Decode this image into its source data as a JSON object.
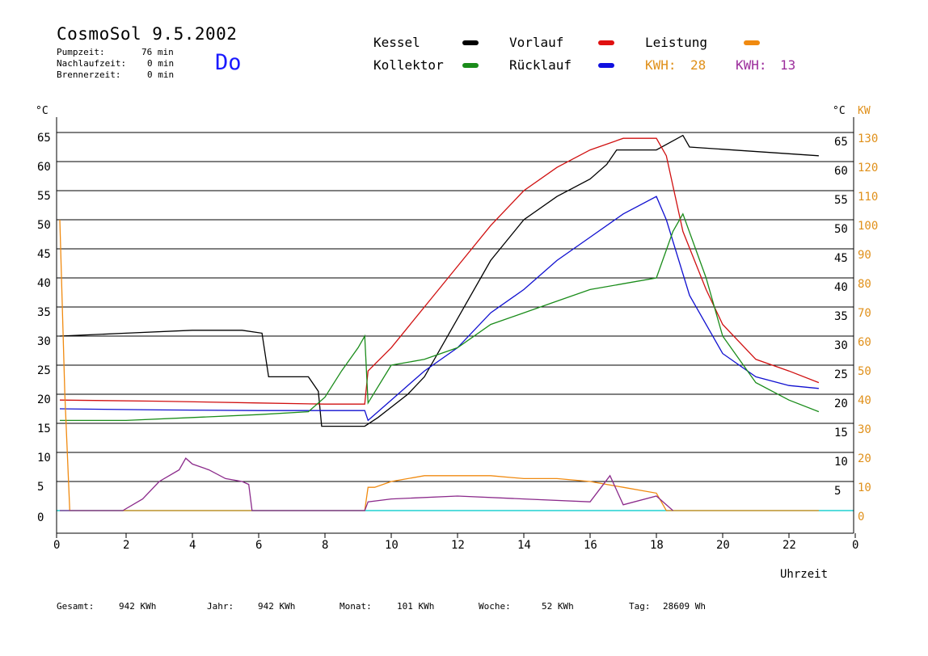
{
  "header": {
    "title": "CosmoSol 9.5.2002",
    "day": "Do",
    "stats": [
      {
        "label": "Pumpzeit:",
        "value": "76 min"
      },
      {
        "label": "Nachlaufzeit:",
        "value": "0 min"
      },
      {
        "label": "Brennerzeit:",
        "value": "0 min"
      }
    ]
  },
  "legend": {
    "kessel": {
      "label": "Kessel",
      "color": "#000000"
    },
    "kollektor": {
      "label": "Kollektor",
      "color": "#1a8c1a"
    },
    "vorlauf": {
      "label": "Vorlauf",
      "color": "#e01010"
    },
    "ruecklauf": {
      "label": "Rücklauf",
      "color": "#1010e0"
    },
    "leistung": {
      "label": "Leistung",
      "color": "#f08a10"
    },
    "kwh1": {
      "label": "KWH:",
      "value": "28",
      "color": "#e0901a"
    },
    "kwh2": {
      "label": "KWH:",
      "value": "13",
      "color": "#9b2d9b"
    }
  },
  "footer": [
    {
      "label": "Gesamt:",
      "value": "942 KWh"
    },
    {
      "label": "Jahr:",
      "value": "942 KWh"
    },
    {
      "label": "Monat:",
      "value": "101 KWh"
    },
    {
      "label": "Woche:",
      "value": "52 KWh"
    },
    {
      "label": "Tag:",
      "value": "28609 Wh"
    }
  ],
  "chart_data": {
    "type": "line",
    "xlabel": "Uhrzeit",
    "ylabel_left": "°C",
    "ylabel_right": "°C",
    "ylabel_right2": "KW",
    "xlim": [
      0,
      24
    ],
    "ylim": [
      0,
      65
    ],
    "ylim_kw": [
      0,
      130
    ],
    "x_ticks": [
      "0",
      "2",
      "4",
      "6",
      "8",
      "10",
      "12",
      "14",
      "16",
      "18",
      "20",
      "22",
      "0"
    ],
    "y_ticks": [
      "0",
      "5",
      "10",
      "15",
      "20",
      "25",
      "30",
      "35",
      "40",
      "45",
      "50",
      "55",
      "60",
      "65"
    ],
    "y_ticks_right": [
      "5",
      "10",
      "15",
      "20",
      "25",
      "30",
      "35",
      "40",
      "45",
      "50",
      "55",
      "60",
      "65"
    ],
    "kw_ticks": [
      "0",
      "10",
      "20",
      "30",
      "40",
      "50",
      "60",
      "70",
      "80",
      "90",
      "100",
      "110",
      "120",
      "130"
    ],
    "grid": true,
    "series": [
      {
        "name": "Kessel",
        "color": "#000000",
        "x": [
          0,
          2,
          4,
          5.5,
          6.1,
          6.3,
          7.5,
          7.8,
          7.9,
          9.2,
          9.6,
          10.5,
          11,
          12,
          13,
          14,
          15,
          16,
          16.5,
          16.8,
          18,
          18.8,
          19,
          22.9
        ],
        "y": [
          30,
          30.5,
          31,
          31,
          30.5,
          23,
          23,
          20.5,
          14.5,
          14.5,
          16,
          20,
          23,
          33,
          43,
          50,
          54,
          57,
          59.5,
          62,
          62,
          64.5,
          62.5,
          61
        ]
      },
      {
        "name": "Vorlauf",
        "color": "#d01010",
        "x": [
          0,
          3,
          6,
          8,
          9.2,
          9.3,
          10,
          11,
          12,
          13,
          14,
          15,
          16,
          17,
          18,
          18.3,
          18.8,
          19.5,
          20,
          21,
          22,
          22.9
        ],
        "y": [
          19,
          18.8,
          18.5,
          18.3,
          18.3,
          24,
          28,
          35,
          42,
          49,
          55,
          59,
          62,
          64,
          64,
          61,
          48,
          38,
          32,
          26,
          24,
          22
        ]
      },
      {
        "name": "Rücklauf",
        "color": "#1010d0",
        "x": [
          0,
          3,
          6,
          8,
          9.2,
          9.3,
          10,
          11,
          12,
          13,
          14,
          15,
          16,
          17,
          18,
          18.3,
          19,
          20,
          21,
          22,
          22.9
        ],
        "y": [
          17.5,
          17.3,
          17.2,
          17.2,
          17.2,
          15.5,
          19,
          24,
          28,
          34,
          38,
          43,
          47,
          51,
          54,
          50,
          37,
          27,
          23,
          21.5,
          21
        ]
      },
      {
        "name": "Kollektor",
        "color": "#1a8c1a",
        "x": [
          0,
          2,
          4,
          6,
          7.5,
          8,
          8.5,
          9,
          9.2,
          9.3,
          10,
          11,
          12,
          13,
          14,
          15,
          16,
          17,
          18,
          18.5,
          18.8,
          19.5,
          20,
          21,
          22,
          22.9
        ],
        "y": [
          15.5,
          15.5,
          16,
          16.5,
          17,
          19.5,
          24,
          28,
          30,
          18.5,
          25,
          26,
          28,
          32,
          34,
          36,
          38,
          39,
          40,
          48,
          51,
          40,
          30,
          22,
          19,
          17
        ]
      },
      {
        "name": "Leistung",
        "color": "#f08a10",
        "x": [
          0,
          0.15,
          0.3,
          9.2,
          9.3,
          9.5,
          10,
          11,
          12,
          13,
          14,
          15,
          16,
          17,
          18,
          18.3,
          22.9
        ],
        "y_kw": [
          100,
          40,
          0,
          0,
          8,
          8,
          10,
          12,
          12,
          12,
          11,
          11,
          10,
          8,
          6,
          0,
          0
        ]
      },
      {
        "name": "KWH2",
        "color": "#8b2a8b",
        "x": [
          0,
          1.9,
          2.5,
          3,
          3.6,
          3.8,
          4,
          4.5,
          5,
          5.5,
          5.7,
          5.8,
          5.85,
          9.2,
          9.3,
          10,
          12,
          14,
          16,
          16.6,
          17,
          18,
          18.5
        ],
        "y_kw": [
          0,
          0,
          4,
          10,
          14,
          18,
          16,
          14,
          11,
          10,
          9,
          0,
          0,
          0,
          3,
          4,
          5,
          4,
          3,
          12,
          2,
          5,
          0
        ]
      }
    ]
  }
}
